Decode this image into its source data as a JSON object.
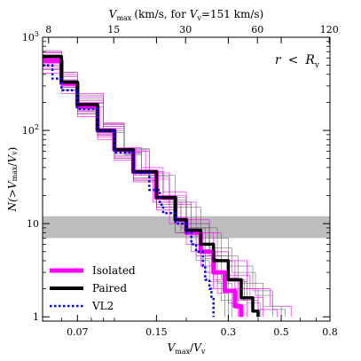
{
  "chart_data": {
    "type": "line",
    "title": "",
    "annotation": {
      "main": "r",
      "operator": "<",
      "rhs": "R",
      "rhs_sub": "v"
    },
    "x_scale": "log",
    "y_scale": "log",
    "xlim": [
      0.05,
      0.8
    ],
    "ylim": [
      0.9,
      1000
    ],
    "xlabel": {
      "main": "V",
      "main_sub": "max",
      "slash": "/",
      "denom": "V",
      "denom_sub": "v"
    },
    "ylabel": {
      "prefix": "N(>",
      "main": "V",
      "main_sub": "max",
      "slash": "/",
      "denom": "V",
      "denom_sub": "v",
      "suffix": ")"
    },
    "top_axis_label": {
      "main": "V",
      "main_sub": "max",
      "unit": "(km/s, for ",
      "ref": "V",
      "ref_sub": "v",
      "ref_value": "=151 km/s)"
    },
    "x_ticks": [
      {
        "value": 0.07,
        "label": "0.07"
      },
      {
        "value": 0.15,
        "label": "0.15"
      },
      {
        "value": 0.3,
        "label": "0.3"
      },
      {
        "value": 0.5,
        "label": "0.5"
      },
      {
        "value": 0.8,
        "label": "0.8"
      }
    ],
    "top_ticks": [
      {
        "value": 8,
        "label": "8"
      },
      {
        "value": 15,
        "label": "15"
      },
      {
        "value": 30,
        "label": "30"
      },
      {
        "value": 60,
        "label": "60"
      },
      {
        "value": 120,
        "label": "120"
      }
    ],
    "top_axis_scale_kms": 151,
    "y_ticks": [
      {
        "value": 1,
        "label": "1",
        "base": "",
        "exp": ""
      },
      {
        "value": 10,
        "label": "10",
        "base": "",
        "exp": ""
      },
      {
        "value": 100,
        "label": "",
        "base": "10",
        "exp": "2"
      },
      {
        "value": 1000,
        "label": "",
        "base": "10",
        "exp": "3"
      }
    ],
    "shaded_band": {
      "ymin": 7,
      "ymax": 12,
      "color": "#bdbdbd"
    },
    "legend": {
      "placement": "lower-left",
      "entries": [
        {
          "label": "Isolated",
          "color": "#ff00ff",
          "style": "solid"
        },
        {
          "label": "Paired",
          "color": "#000000",
          "style": "solid"
        },
        {
          "label": "VL2",
          "color": "#0000ff",
          "style": "dotted"
        }
      ]
    },
    "series": [
      {
        "name": "Isolated",
        "color": "#ff00ff",
        "style": "solid",
        "width": 5,
        "points": [
          [
            0.05,
            560
          ],
          [
            0.06,
            320
          ],
          [
            0.07,
            180
          ],
          [
            0.085,
            100
          ],
          [
            0.1,
            62
          ],
          [
            0.12,
            36
          ],
          [
            0.15,
            19
          ],
          [
            0.18,
            11
          ],
          [
            0.2,
            8
          ],
          [
            0.23,
            5
          ],
          [
            0.26,
            3
          ],
          [
            0.29,
            1.9
          ],
          [
            0.32,
            1.3
          ],
          [
            0.34,
            1
          ]
        ]
      },
      {
        "name": "Paired",
        "color": "#000000",
        "style": "solid",
        "width": 3.5,
        "points": [
          [
            0.05,
            620
          ],
          [
            0.06,
            330
          ],
          [
            0.07,
            190
          ],
          [
            0.085,
            100
          ],
          [
            0.1,
            62
          ],
          [
            0.12,
            36
          ],
          [
            0.15,
            19
          ],
          [
            0.18,
            11
          ],
          [
            0.2,
            8.5
          ],
          [
            0.23,
            6
          ],
          [
            0.26,
            4
          ],
          [
            0.3,
            2.5
          ],
          [
            0.34,
            1.6
          ],
          [
            0.38,
            1.15
          ],
          [
            0.4,
            1
          ]
        ]
      },
      {
        "name": "VL2",
        "color": "#0000ff",
        "style": "dotted",
        "width": 2.5,
        "points": [
          [
            0.05,
            500
          ],
          [
            0.055,
            360
          ],
          [
            0.06,
            270
          ],
          [
            0.07,
            170
          ],
          [
            0.085,
            100
          ],
          [
            0.1,
            58
          ],
          [
            0.12,
            35
          ],
          [
            0.14,
            23
          ],
          [
            0.155,
            16
          ],
          [
            0.16,
            13
          ],
          [
            0.18,
            10
          ],
          [
            0.2,
            8
          ],
          [
            0.21,
            6
          ],
          [
            0.22,
            5
          ],
          [
            0.235,
            3.5
          ],
          [
            0.24,
            2.5
          ],
          [
            0.25,
            2
          ],
          [
            0.255,
            1.6
          ],
          [
            0.26,
            1
          ]
        ]
      }
    ],
    "ensembles": [
      {
        "color": "#ff00ff",
        "width": 0.6,
        "curves": [
          [
            [
              0.05,
              700
            ],
            [
              0.06,
              420
            ],
            [
              0.07,
              250
            ],
            [
              0.09,
              120
            ],
            [
              0.11,
              65
            ],
            [
              0.13,
              40
            ],
            [
              0.16,
              22
            ],
            [
              0.2,
              11
            ],
            [
              0.25,
              5
            ],
            [
              0.3,
              2.5
            ],
            [
              0.35,
              1.5
            ],
            [
              0.4,
              1
            ]
          ],
          [
            [
              0.05,
              450
            ],
            [
              0.06,
              270
            ],
            [
              0.07,
              150
            ],
            [
              0.085,
              85
            ],
            [
              0.1,
              50
            ],
            [
              0.12,
              30
            ],
            [
              0.15,
              15
            ],
            [
              0.18,
              8
            ],
            [
              0.21,
              5
            ],
            [
              0.24,
              3
            ],
            [
              0.27,
              1.8
            ],
            [
              0.3,
              1
            ]
          ],
          [
            [
              0.05,
              620
            ],
            [
              0.06,
              380
            ],
            [
              0.07,
              210
            ],
            [
              0.09,
              110
            ],
            [
              0.11,
              60
            ],
            [
              0.14,
              30
            ],
            [
              0.17,
              16
            ],
            [
              0.21,
              8
            ],
            [
              0.26,
              4
            ],
            [
              0.32,
              2
            ],
            [
              0.4,
              1.2
            ],
            [
              0.48,
              1
            ]
          ],
          [
            [
              0.05,
              520
            ],
            [
              0.06,
              300
            ],
            [
              0.07,
              170
            ],
            [
              0.085,
              95
            ],
            [
              0.1,
              56
            ],
            [
              0.12,
              33
            ],
            [
              0.15,
              17
            ],
            [
              0.19,
              9
            ],
            [
              0.24,
              4.5
            ],
            [
              0.28,
              2.6
            ],
            [
              0.33,
              1.5
            ],
            [
              0.36,
              1
            ]
          ],
          [
            [
              0.05,
              680
            ],
            [
              0.06,
              400
            ],
            [
              0.07,
              230
            ],
            [
              0.09,
              115
            ],
            [
              0.11,
              62
            ],
            [
              0.135,
              35
            ],
            [
              0.17,
              17
            ],
            [
              0.22,
              8
            ],
            [
              0.28,
              4
            ],
            [
              0.36,
              2
            ],
            [
              0.45,
              1.3
            ],
            [
              0.55,
              1
            ]
          ],
          [
            [
              0.05,
              480
            ],
            [
              0.06,
              290
            ],
            [
              0.07,
              160
            ],
            [
              0.085,
              90
            ],
            [
              0.1,
              52
            ],
            [
              0.12,
              30
            ],
            [
              0.145,
              17
            ],
            [
              0.17,
              10
            ],
            [
              0.2,
              6
            ],
            [
              0.23,
              3.5
            ],
            [
              0.26,
              2
            ],
            [
              0.29,
              1
            ]
          ],
          [
            [
              0.05,
              590
            ],
            [
              0.06,
              350
            ],
            [
              0.07,
              200
            ],
            [
              0.09,
              105
            ],
            [
              0.11,
              58
            ],
            [
              0.13,
              36
            ],
            [
              0.16,
              20
            ],
            [
              0.2,
              10
            ],
            [
              0.25,
              5
            ],
            [
              0.3,
              2.8
            ],
            [
              0.37,
              1.6
            ],
            [
              0.42,
              1
            ]
          ],
          [
            [
              0.05,
              410
            ],
            [
              0.06,
              250
            ],
            [
              0.07,
              140
            ],
            [
              0.085,
              80
            ],
            [
              0.1,
              48
            ],
            [
              0.12,
              28
            ],
            [
              0.15,
              14
            ],
            [
              0.18,
              8
            ],
            [
              0.22,
              4.5
            ],
            [
              0.26,
              2.5
            ],
            [
              0.3,
              1.4
            ],
            [
              0.33,
              1
            ]
          ]
        ]
      },
      {
        "color": "#555555",
        "width": 0.5,
        "curves": [
          [
            [
              0.05,
              540
            ],
            [
              0.06,
              310
            ],
            [
              0.07,
              180
            ],
            [
              0.09,
              95
            ],
            [
              0.11,
              55
            ],
            [
              0.13,
              33
            ],
            [
              0.16,
              18
            ],
            [
              0.2,
              9
            ],
            [
              0.25,
              4.5
            ],
            [
              0.3,
              2.4
            ],
            [
              0.36,
              1.4
            ],
            [
              0.41,
              1
            ]
          ],
          [
            [
              0.05,
              650
            ],
            [
              0.06,
              380
            ],
            [
              0.07,
              220
            ],
            [
              0.09,
              110
            ],
            [
              0.11,
              62
            ],
            [
              0.14,
              32
            ],
            [
              0.17,
              17
            ],
            [
              0.21,
              9
            ],
            [
              0.27,
              4.5
            ],
            [
              0.33,
              2.3
            ],
            [
              0.42,
              1.3
            ],
            [
              0.5,
              1
            ]
          ],
          [
            [
              0.05,
              460
            ],
            [
              0.06,
              270
            ],
            [
              0.07,
              155
            ],
            [
              0.085,
              88
            ],
            [
              0.1,
              50
            ],
            [
              0.12,
              29
            ],
            [
              0.15,
              15
            ],
            [
              0.18,
              8
            ],
            [
              0.22,
              4
            ],
            [
              0.25,
              2.4
            ],
            [
              0.28,
              1.5
            ],
            [
              0.31,
              1
            ]
          ],
          [
            [
              0.05,
              600
            ],
            [
              0.06,
              345
            ],
            [
              0.07,
              195
            ],
            [
              0.09,
              100
            ],
            [
              0.11,
              57
            ],
            [
              0.13,
              35
            ],
            [
              0.16,
              19
            ],
            [
              0.2,
              10
            ],
            [
              0.25,
              5.5
            ],
            [
              0.31,
              3
            ],
            [
              0.39,
              1.7
            ],
            [
              0.46,
              1
            ]
          ],
          [
            [
              0.05,
              500
            ],
            [
              0.06,
              290
            ],
            [
              0.07,
              165
            ],
            [
              0.085,
              92
            ],
            [
              0.1,
              54
            ],
            [
              0.12,
              31
            ],
            [
              0.15,
              16
            ],
            [
              0.19,
              8
            ],
            [
              0.23,
              4.2
            ],
            [
              0.27,
              2.3
            ],
            [
              0.31,
              1.3
            ],
            [
              0.34,
              1
            ]
          ],
          [
            [
              0.05,
              720
            ],
            [
              0.06,
              420
            ],
            [
              0.07,
              240
            ],
            [
              0.09,
              118
            ],
            [
              0.11,
              64
            ],
            [
              0.14,
              33
            ],
            [
              0.18,
              15
            ],
            [
              0.23,
              7
            ],
            [
              0.3,
              3.5
            ],
            [
              0.38,
              1.9
            ],
            [
              0.46,
              1.2
            ],
            [
              0.52,
              1
            ]
          ]
        ]
      }
    ]
  }
}
